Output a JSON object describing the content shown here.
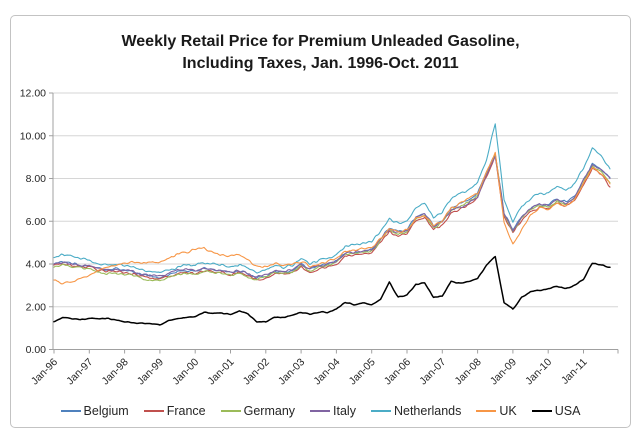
{
  "figure": {
    "title_line1": "Weekly Retail Price for Premium Unleaded Gasoline,",
    "title_line2": "Including Taxes, Jan. 1996-Oct. 2011"
  },
  "chart_data": {
    "type": "line",
    "title": "Weekly Retail Price for Premium Unleaded Gasoline, Including Taxes, Jan. 1996-Oct. 2011",
    "xlabel": "",
    "ylabel": "",
    "ylim": [
      0,
      12
    ],
    "grid": "horizontal",
    "legend_position": "bottom",
    "x_unit": "year (quarterly estimates of weekly data)",
    "x_range_label": "Jan. 1996 - Oct. 2011",
    "y_ticks": [
      0,
      2,
      4,
      6,
      8,
      10,
      12
    ],
    "y_tick_labels": [
      "0.00",
      "2.00",
      "4.00",
      "6.00",
      "8.00",
      "10.00",
      "12.00"
    ],
    "x_tick_labels": [
      "Jan-96",
      "Jan-97",
      "Jan-98",
      "Jan-99",
      "Jan-00",
      "Jan-01",
      "Jan-02",
      "Jan-03",
      "Jan-04",
      "Jan-05",
      "Jan-06",
      "Jan-07",
      "Jan-08",
      "Jan-09",
      "Jan-10",
      "Jan-11"
    ],
    "x": [
      1996,
      1996.25,
      1996.5,
      1996.75,
      1997,
      1997.25,
      1997.5,
      1997.75,
      1998,
      1998.25,
      1998.5,
      1998.75,
      1999,
      1999.25,
      1999.5,
      1999.75,
      2000,
      2000.25,
      2000.5,
      2000.75,
      2001,
      2001.25,
      2001.5,
      2001.75,
      2002,
      2002.25,
      2002.5,
      2002.75,
      2003,
      2003.25,
      2003.5,
      2003.75,
      2004,
      2004.25,
      2004.5,
      2004.75,
      2005,
      2005.25,
      2005.5,
      2005.75,
      2006,
      2006.25,
      2006.5,
      2006.75,
      2007,
      2007.25,
      2007.5,
      2007.75,
      2008,
      2008.25,
      2008.5,
      2008.75,
      2009,
      2009.25,
      2009.5,
      2009.75,
      2010,
      2010.25,
      2010.5,
      2010.75,
      2011,
      2011.25,
      2011.5,
      2011.75
    ],
    "series": [
      {
        "name": "Belgium",
        "color": "#4F81BD",
        "stroke_width": 1.1,
        "values": [
          4.0,
          4.1,
          4.05,
          3.95,
          3.95,
          3.8,
          3.75,
          3.8,
          3.7,
          3.6,
          3.5,
          3.45,
          3.4,
          3.5,
          3.65,
          3.7,
          3.7,
          3.8,
          3.75,
          3.7,
          3.6,
          3.7,
          3.55,
          3.35,
          3.45,
          3.65,
          3.6,
          3.7,
          4.0,
          3.75,
          3.9,
          4.0,
          4.15,
          4.5,
          4.55,
          4.6,
          4.7,
          5.2,
          5.7,
          5.5,
          5.6,
          6.2,
          6.4,
          5.8,
          6.0,
          6.6,
          6.8,
          7.0,
          7.3,
          8.3,
          9.2,
          6.4,
          5.6,
          6.2,
          6.6,
          6.8,
          6.8,
          7.0,
          6.9,
          7.2,
          7.9,
          8.7,
          8.45,
          8.05
        ]
      },
      {
        "name": "France",
        "color": "#C0504D",
        "stroke_width": 1.1,
        "values": [
          3.95,
          4.0,
          3.95,
          3.85,
          3.9,
          3.7,
          3.65,
          3.7,
          3.6,
          3.55,
          3.4,
          3.35,
          3.3,
          3.4,
          3.55,
          3.6,
          3.55,
          3.7,
          3.65,
          3.6,
          3.5,
          3.6,
          3.45,
          3.25,
          3.35,
          3.55,
          3.5,
          3.6,
          3.85,
          3.6,
          3.75,
          3.85,
          4.0,
          4.35,
          4.4,
          4.45,
          4.5,
          5.0,
          5.5,
          5.3,
          5.4,
          6.0,
          6.15,
          5.6,
          5.8,
          6.4,
          6.55,
          6.8,
          7.1,
          8.1,
          9.0,
          6.2,
          5.45,
          6.05,
          6.45,
          6.65,
          6.6,
          6.85,
          6.7,
          7.0,
          7.7,
          8.5,
          8.2,
          7.6
        ]
      },
      {
        "name": "Germany",
        "color": "#9BBB59",
        "stroke_width": 1.1,
        "values": [
          3.85,
          3.95,
          3.9,
          3.8,
          3.8,
          3.6,
          3.55,
          3.6,
          3.5,
          3.45,
          3.3,
          3.25,
          3.25,
          3.35,
          3.5,
          3.55,
          3.5,
          3.65,
          3.6,
          3.55,
          3.45,
          3.55,
          3.4,
          3.25,
          3.4,
          3.6,
          3.55,
          3.65,
          3.9,
          3.7,
          3.85,
          3.95,
          4.1,
          4.45,
          4.5,
          4.55,
          4.6,
          5.1,
          5.6,
          5.4,
          5.5,
          6.1,
          6.3,
          5.7,
          5.95,
          6.55,
          6.7,
          6.9,
          7.2,
          8.2,
          9.1,
          6.3,
          5.55,
          6.15,
          6.55,
          6.75,
          6.7,
          6.95,
          6.8,
          7.1,
          7.85,
          8.6,
          8.3,
          7.8
        ]
      },
      {
        "name": "Italy",
        "color": "#8064A2",
        "stroke_width": 1.1,
        "values": [
          4.0,
          4.05,
          4.0,
          3.95,
          3.95,
          3.8,
          3.7,
          3.75,
          3.7,
          3.65,
          3.5,
          3.45,
          3.45,
          3.55,
          3.7,
          3.75,
          3.7,
          3.8,
          3.75,
          3.7,
          3.6,
          3.7,
          3.55,
          3.4,
          3.5,
          3.7,
          3.65,
          3.75,
          4.0,
          3.8,
          3.9,
          4.0,
          4.15,
          4.5,
          4.55,
          4.6,
          4.65,
          5.15,
          5.65,
          5.45,
          5.55,
          6.15,
          6.35,
          5.75,
          6.0,
          6.5,
          6.65,
          6.85,
          7.15,
          8.15,
          9.05,
          6.35,
          5.6,
          6.2,
          6.6,
          6.8,
          6.75,
          7.0,
          6.85,
          7.15,
          7.95,
          8.65,
          8.4,
          8.0
        ]
      },
      {
        "name": "Netherlands",
        "color": "#4BACC6",
        "stroke_width": 1.1,
        "values": [
          4.3,
          4.45,
          4.35,
          4.25,
          4.2,
          4.0,
          3.95,
          4.0,
          3.9,
          3.85,
          3.7,
          3.65,
          3.6,
          3.7,
          3.85,
          3.95,
          3.95,
          4.05,
          4.0,
          3.95,
          3.85,
          3.95,
          3.8,
          3.6,
          3.7,
          3.9,
          3.85,
          3.95,
          4.25,
          4.0,
          4.15,
          4.25,
          4.45,
          4.8,
          4.9,
          4.95,
          5.05,
          5.55,
          6.1,
          5.9,
          6.0,
          6.6,
          6.85,
          6.2,
          6.45,
          7.05,
          7.25,
          7.5,
          7.8,
          8.9,
          10.6,
          7.0,
          6.0,
          6.7,
          7.05,
          7.3,
          7.3,
          7.6,
          7.45,
          7.75,
          8.5,
          9.4,
          9.0,
          8.45
        ]
      },
      {
        "name": "UK",
        "color": "#F79646",
        "stroke_width": 1.1,
        "values": [
          3.25,
          3.1,
          3.15,
          3.3,
          3.5,
          3.7,
          3.85,
          3.95,
          4.0,
          4.1,
          4.05,
          4.1,
          4.1,
          4.25,
          4.45,
          4.55,
          4.7,
          4.75,
          4.55,
          4.45,
          4.35,
          4.45,
          4.15,
          3.9,
          3.85,
          4.0,
          3.95,
          4.0,
          4.1,
          3.9,
          4.0,
          4.1,
          4.25,
          4.6,
          4.65,
          4.7,
          4.75,
          5.2,
          5.65,
          5.5,
          5.6,
          6.1,
          6.3,
          5.8,
          6.0,
          6.6,
          6.8,
          7.1,
          7.3,
          8.3,
          9.2,
          5.9,
          4.9,
          5.6,
          6.3,
          6.6,
          6.55,
          6.85,
          6.7,
          7.0,
          7.75,
          8.55,
          8.25,
          7.75
        ]
      },
      {
        "name": "USA",
        "color": "#000000",
        "stroke_width": 1.5,
        "values": [
          1.3,
          1.5,
          1.45,
          1.4,
          1.45,
          1.45,
          1.45,
          1.4,
          1.3,
          1.25,
          1.25,
          1.2,
          1.15,
          1.35,
          1.45,
          1.5,
          1.55,
          1.75,
          1.7,
          1.7,
          1.65,
          1.8,
          1.65,
          1.3,
          1.3,
          1.5,
          1.5,
          1.6,
          1.75,
          1.65,
          1.75,
          1.75,
          1.9,
          2.2,
          2.1,
          2.2,
          2.1,
          2.35,
          3.15,
          2.45,
          2.55,
          3.05,
          3.1,
          2.45,
          2.5,
          3.2,
          3.1,
          3.2,
          3.3,
          3.95,
          4.35,
          2.2,
          1.9,
          2.45,
          2.7,
          2.75,
          2.85,
          2.95,
          2.85,
          3.0,
          3.3,
          4.05,
          3.95,
          3.85
        ]
      }
    ],
    "style": {
      "gridline_color": "#d6d6d6",
      "axis_color": "#a0a0a0",
      "tick_label_color": "#262626"
    }
  }
}
